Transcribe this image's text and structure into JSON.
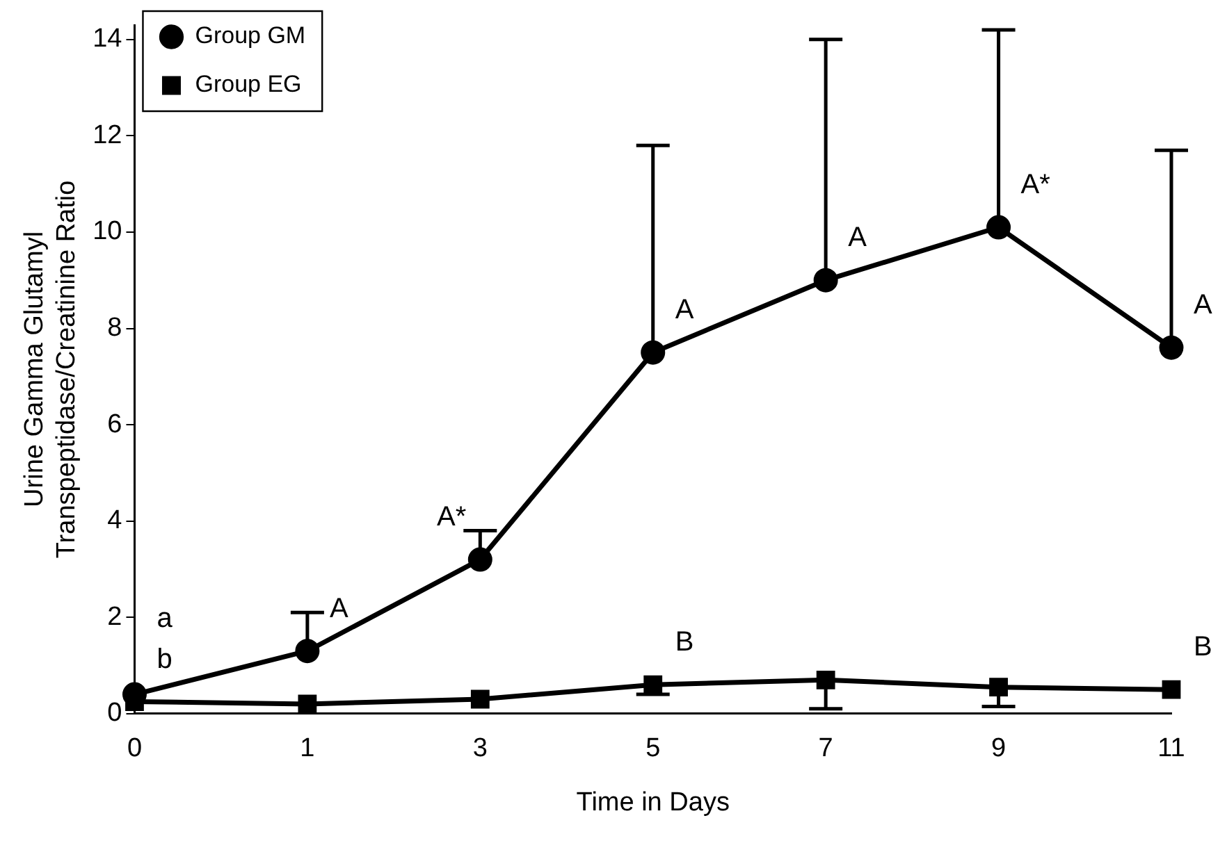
{
  "chart_data": {
    "type": "line",
    "xlabel": "Time in Days",
    "ylabel": "Urine Gamma Glutamyl\nTranspeptidase/Creatinine Ratio",
    "categories": [
      "0",
      "1",
      "3",
      "5",
      "7",
      "9",
      "11"
    ],
    "ylim": [
      0,
      14.3
    ],
    "yticks": [
      0,
      2,
      4,
      6,
      8,
      10,
      12,
      14
    ],
    "grid": false,
    "legend": "top left",
    "line_style": "solid",
    "series": [
      {
        "name": "Group GM",
        "color": "#000000",
        "marker": "circle",
        "values": [
          0.4,
          1.3,
          3.2,
          7.5,
          9.0,
          10.1,
          7.6
        ],
        "errors": [
          null,
          [
            1.3,
            2.1
          ],
          [
            3.2,
            3.8
          ],
          [
            7.5,
            11.8
          ],
          [
            9.0,
            14.0
          ],
          [
            10.1,
            14.2
          ],
          [
            7.6,
            11.7
          ]
        ]
      },
      {
        "name": "Group EG",
        "color": "#000000",
        "marker": "square",
        "values": [
          0.25,
          0.2,
          0.3,
          0.6,
          0.7,
          0.55,
          0.5
        ],
        "errors": [
          null,
          null,
          null,
          [
            0.4,
            0.6
          ],
          [
            0.1,
            0.7
          ],
          [
            0.15,
            0.55
          ],
          null
        ]
      }
    ],
    "annotations": [
      {
        "text": "a",
        "x": "0",
        "y": 0.4
      },
      {
        "text": "b",
        "x": "0",
        "y": 0.25
      },
      {
        "text": "A",
        "x": "1",
        "y": 1.3
      },
      {
        "text": "A*",
        "x": "3",
        "y": 3.2
      },
      {
        "text": "A",
        "x": "5",
        "y": 7.5
      },
      {
        "text": "A",
        "x": "7",
        "y": 9.0
      },
      {
        "text": "A*",
        "x": "9",
        "y": 10.1
      },
      {
        "text": "A",
        "x": "11",
        "y": 7.6
      },
      {
        "text": "B",
        "x": "5",
        "y": 0.6
      },
      {
        "text": "B",
        "x": "11",
        "y": 0.5
      }
    ]
  }
}
